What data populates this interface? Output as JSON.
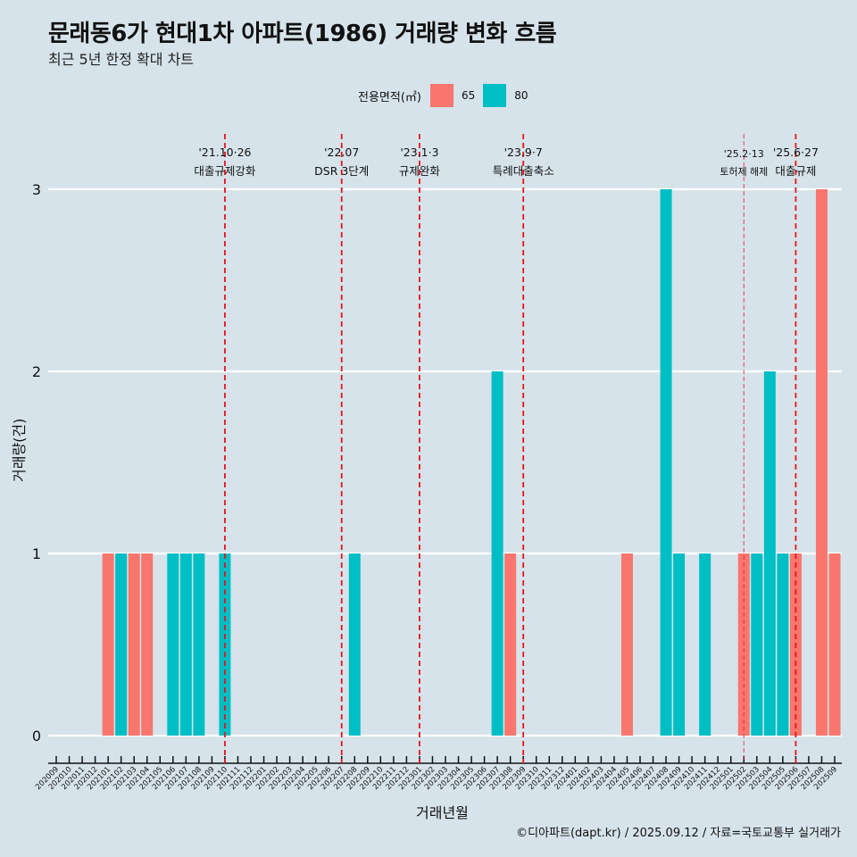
{
  "title": "문래동6가 현대1차 아파트(1986) 거래량 변화 흐름",
  "subtitle": "최근 5년 한정 확대 차트",
  "caption": "©디아파트(dapt.kr) / 2025.09.12 / 자료=국토교통부 실거래가",
  "legend": {
    "title": "전용면적(㎡)",
    "items": [
      {
        "label": "65",
        "color": "#f8766d"
      },
      {
        "label": "80",
        "color": "#00bfc4"
      }
    ]
  },
  "chart_data": {
    "type": "bar",
    "title": "문래동6가 현대1차 아파트(1986) 거래량 변화 흐름",
    "subtitle": "최근 5년 한정 확대 차트",
    "xlabel": "거래년월",
    "ylabel": "거래량(건)",
    "ylim": [
      0,
      3
    ],
    "yticks": [
      0,
      1,
      2,
      3
    ],
    "grid": true,
    "legend_position": "top",
    "categories": [
      "202009",
      "202010",
      "202011",
      "202012",
      "202101",
      "202102",
      "202103",
      "202104",
      "202105",
      "202106",
      "202107",
      "202108",
      "202109",
      "202110",
      "202111",
      "202112",
      "202201",
      "202202",
      "202203",
      "202204",
      "202205",
      "202206",
      "202207",
      "202208",
      "202209",
      "202210",
      "202211",
      "202212",
      "202301",
      "202302",
      "202303",
      "202304",
      "202305",
      "202306",
      "202307",
      "202308",
      "202309",
      "202310",
      "202311",
      "202312",
      "202401",
      "202402",
      "202403",
      "202404",
      "202405",
      "202406",
      "202407",
      "202408",
      "202409",
      "202410",
      "202411",
      "202412",
      "202501",
      "202502",
      "202503",
      "202504",
      "202505",
      "202506",
      "202507",
      "202508",
      "202509"
    ],
    "series": [
      {
        "name": "65",
        "color": "#f8766d",
        "points": [
          {
            "x": "202101",
            "y": 1
          },
          {
            "x": "202103",
            "y": 1
          },
          {
            "x": "202104",
            "y": 1
          },
          {
            "x": "202308",
            "y": 1
          },
          {
            "x": "202405",
            "y": 1
          },
          {
            "x": "202502",
            "y": 1
          },
          {
            "x": "202506",
            "y": 1
          },
          {
            "x": "202508",
            "y": 3
          },
          {
            "x": "202509",
            "y": 1
          }
        ]
      },
      {
        "name": "80",
        "color": "#00bfc4",
        "points": [
          {
            "x": "202102",
            "y": 1
          },
          {
            "x": "202106",
            "y": 1
          },
          {
            "x": "202107",
            "y": 1
          },
          {
            "x": "202108",
            "y": 1
          },
          {
            "x": "202110",
            "y": 1
          },
          {
            "x": "202208",
            "y": 1
          },
          {
            "x": "202307",
            "y": 2
          },
          {
            "x": "202408",
            "y": 3
          },
          {
            "x": "202409",
            "y": 1
          },
          {
            "x": "202411",
            "y": 1
          },
          {
            "x": "202503",
            "y": 1
          },
          {
            "x": "202504",
            "y": 2
          },
          {
            "x": "202505",
            "y": 1
          }
        ]
      }
    ],
    "annotations": [
      {
        "x": "202110",
        "date": "'21.10·26",
        "text": "대출규제강화",
        "style": "bold"
      },
      {
        "x": "202207",
        "date": "'22.07",
        "text": "DSR 3단계",
        "style": "bold"
      },
      {
        "x": "202301",
        "date": "'23.1·3",
        "text": "규제완화",
        "style": "bold"
      },
      {
        "x": "202309",
        "date": "'23.9·7",
        "text": "특례대출축소",
        "style": "bold"
      },
      {
        "x": "202502",
        "date": "'25.2·13",
        "text": "토허제 해제",
        "style": "thin"
      },
      {
        "x": "202506",
        "date": "'25.6·27",
        "text": "대출규제",
        "style": "bold"
      }
    ],
    "annotation_color": "#e8141b"
  }
}
